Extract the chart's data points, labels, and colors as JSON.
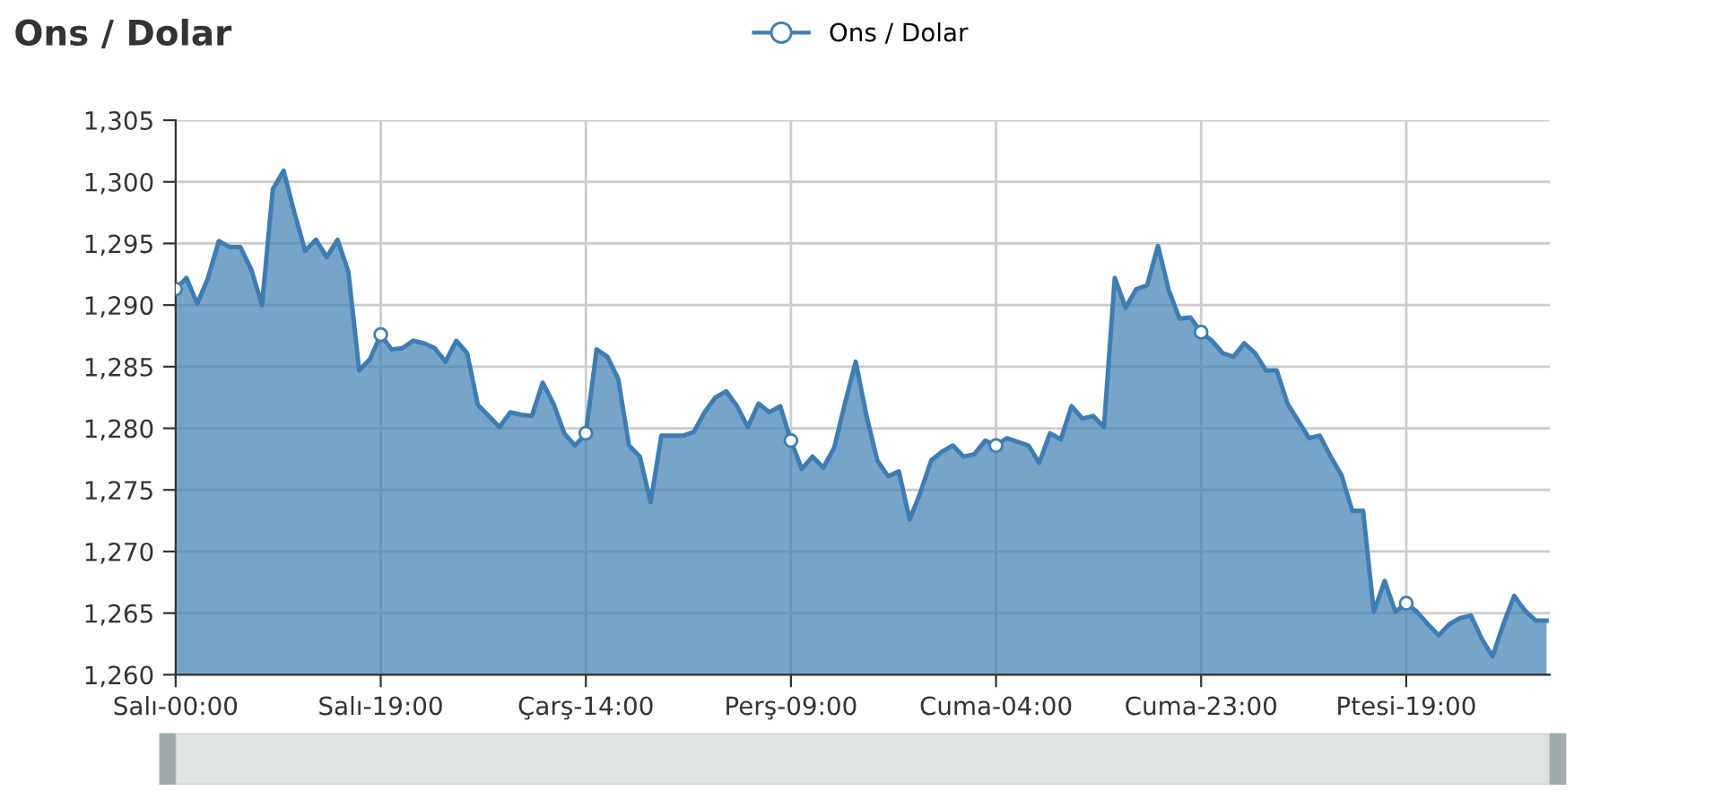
{
  "chart_data": {
    "type": "area",
    "title": "Ons / Dolar",
    "categories": [
      "Salı-00:00",
      null,
      null,
      null,
      null,
      null,
      null,
      null,
      null,
      null,
      null,
      null,
      null,
      null,
      null,
      null,
      null,
      null,
      null,
      "Salı-19:00",
      null,
      null,
      null,
      null,
      null,
      null,
      null,
      null,
      null,
      null,
      null,
      null,
      null,
      null,
      null,
      null,
      null,
      null,
      "Çarş-14:00",
      null,
      null,
      null,
      null,
      null,
      null,
      null,
      null,
      null,
      null,
      null,
      null,
      null,
      null,
      null,
      null,
      null,
      null,
      "Perş-09:00",
      null,
      null,
      null,
      null,
      null,
      null,
      null,
      null,
      null,
      null,
      null,
      null,
      null,
      null,
      null,
      null,
      null,
      null,
      "Cuma-04:00",
      null,
      null,
      null,
      null,
      null,
      null,
      null,
      null,
      null,
      null,
      null,
      null,
      null,
      null,
      null,
      null,
      null,
      null,
      "Cuma-23:00",
      null,
      null,
      null,
      null,
      null,
      null,
      null,
      null,
      null,
      null,
      null,
      null,
      null,
      null,
      null,
      null,
      null,
      null,
      "Ptesi-19:00",
      null,
      null,
      null,
      null,
      null,
      null,
      null,
      null,
      null,
      null,
      null,
      null,
      null
    ],
    "series": [
      {
        "name": "Ons / Dolar",
        "color": "#3e7db3",
        "values": [
          1291.3,
          1292.2,
          1290.1,
          1292.2,
          1295.2,
          1294.7,
          1294.7,
          1292.9,
          1290.0,
          1299.4,
          1300.9,
          1297.5,
          1294.4,
          1295.3,
          1293.9,
          1295.3,
          1292.7,
          1284.7,
          1285.6,
          1287.6,
          1286.4,
          1286.5,
          1287.1,
          1286.9,
          1286.5,
          1285.4,
          1287.1,
          1286.1,
          1281.9,
          1281.0,
          1280.1,
          1281.3,
          1281.1,
          1281.0,
          1283.7,
          1282.0,
          1279.6,
          1278.6,
          1279.6,
          1286.4,
          1285.8,
          1284.0,
          1278.6,
          1277.7,
          1274.0,
          1279.4,
          1279.4,
          1279.4,
          1279.7,
          1281.3,
          1282.5,
          1283.0,
          1281.8,
          1280.1,
          1282.0,
          1281.3,
          1281.8,
          1279.0,
          1276.7,
          1277.7,
          1276.8,
          1278.4,
          1282.0,
          1285.4,
          1281.0,
          1277.4,
          1276.1,
          1276.5,
          1272.6,
          1274.8,
          1277.4,
          1278.1,
          1278.6,
          1277.7,
          1277.9,
          1279.0,
          1278.6,
          1279.2,
          1278.9,
          1278.6,
          1277.2,
          1279.6,
          1279.1,
          1281.8,
          1280.8,
          1281.0,
          1280.1,
          1292.2,
          1289.8,
          1291.3,
          1291.6,
          1294.8,
          1291.2,
          1288.9,
          1289.0,
          1287.8,
          1287.1,
          1286.1,
          1285.8,
          1286.9,
          1286.1,
          1284.7,
          1284.7,
          1282.0,
          1280.6,
          1279.2,
          1279.4,
          1277.7,
          1276.2,
          1273.3,
          1273.3,
          1265.1,
          1267.6,
          1265.1,
          1265.8,
          1265.1,
          1264.1,
          1263.2,
          1264.1,
          1264.6,
          1264.8,
          1262.9,
          1261.5,
          1264.1,
          1266.4,
          1265.2,
          1264.4,
          1264.4
        ]
      }
    ],
    "ylim": [
      1260,
      1305
    ],
    "yticks": [
      {
        "value": 1260,
        "label": "1,260"
      },
      {
        "value": 1265,
        "label": "1,265"
      },
      {
        "value": 1270,
        "label": "1,270"
      },
      {
        "value": 1275,
        "label": "1,275"
      },
      {
        "value": 1280,
        "label": "1,280"
      },
      {
        "value": 1285,
        "label": "1,285"
      },
      {
        "value": 1290,
        "label": "1,290"
      },
      {
        "value": 1295,
        "label": "1,295"
      },
      {
        "value": 1300,
        "label": "1,300"
      },
      {
        "value": 1305,
        "label": "1,305"
      }
    ],
    "grid": true,
    "legend": "top",
    "line_style": "solid"
  }
}
